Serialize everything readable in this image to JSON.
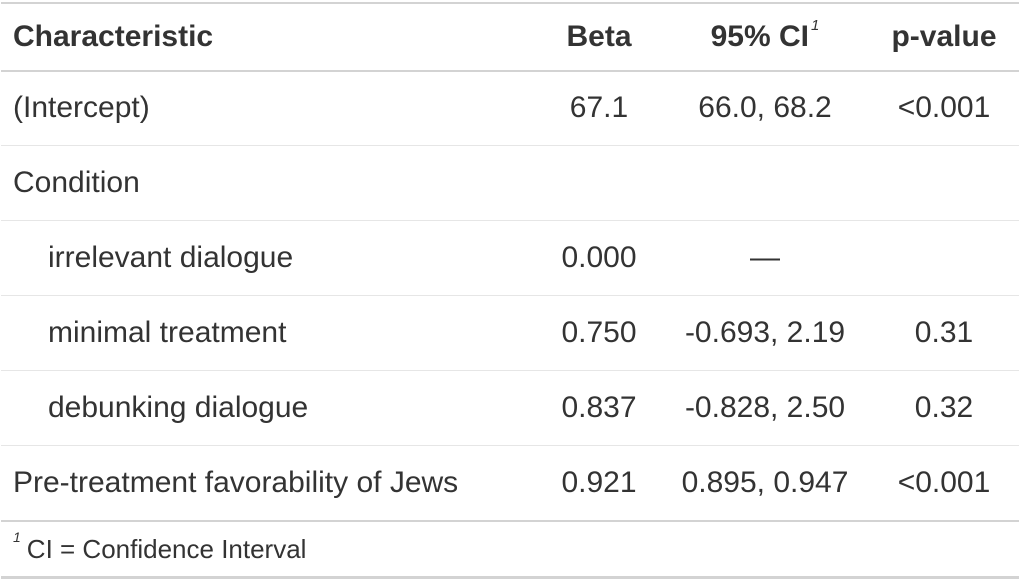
{
  "table": {
    "headers": {
      "characteristic": "Characteristic",
      "beta": "Beta",
      "ci": "95% CI",
      "ci_footnote_mark": "1",
      "p_value": "p-value"
    },
    "rows": [
      {
        "characteristic": "(Intercept)",
        "beta": "67.1",
        "ci": "66.0, 68.2",
        "p_value": "<0.001"
      },
      {
        "characteristic": "Condition",
        "beta": "",
        "ci": "",
        "p_value": ""
      },
      {
        "characteristic": "irrelevant dialogue",
        "beta": "0.000",
        "ci": "—",
        "p_value": ""
      },
      {
        "characteristic": "minimal treatment",
        "beta": "0.750",
        "ci": "-0.693, 2.19",
        "p_value": "0.31"
      },
      {
        "characteristic": "debunking dialogue",
        "beta": "0.837",
        "ci": "-0.828, 2.50",
        "p_value": "0.32"
      },
      {
        "characteristic": "Pre-treatment favorability of Jews",
        "beta": "0.921",
        "ci": "0.895, 0.947",
        "p_value": "<0.001"
      }
    ],
    "footnote": {
      "mark": "1",
      "text": "CI = Confidence Interval"
    }
  }
}
